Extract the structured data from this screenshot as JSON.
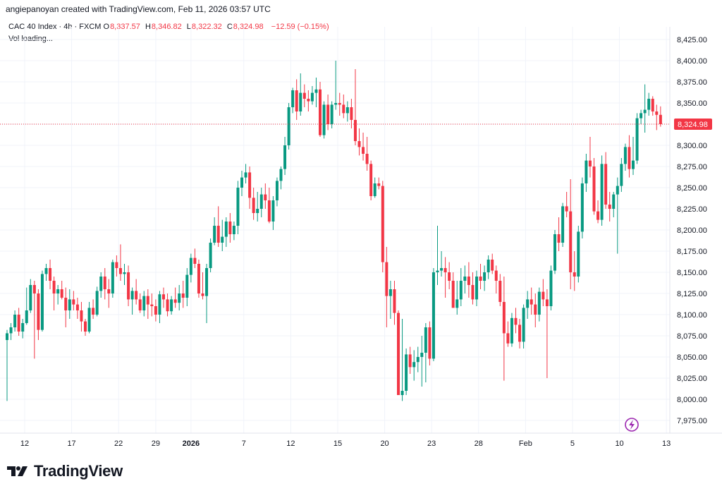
{
  "header": {
    "credit": "angiepanoyan created with TradingView.com, Feb 11, 2026 03:57 UTC"
  },
  "legend": {
    "symbol": "CAC 40 Index · 4h · FXCM",
    "o_label": "O",
    "o": "8,337.57",
    "h_label": "H",
    "h": "8,346.82",
    "l_label": "L",
    "l": "8,322.32",
    "c_label": "C",
    "c": "8,324.98",
    "change": "−12.59 (−0.15%)",
    "vol": "Vol loading..."
  },
  "footer": {
    "brand": "TradingView"
  },
  "colors": {
    "up": "#089981",
    "down": "#f23645",
    "grid": "#f0f3fa",
    "text": "#131722",
    "last_line": "#f23645"
  },
  "chart_data": {
    "type": "candlestick",
    "title": "CAC 40 Index · 4h · FXCM",
    "ylim": [
      7960,
      8440
    ],
    "y_ticks": [
      7975,
      8000,
      8025,
      8050,
      8075,
      8100,
      8125,
      8150,
      8175,
      8200,
      8225,
      8250,
      8275,
      8300,
      8325,
      8350,
      8375,
      8400,
      8425
    ],
    "y_tick_labels": [
      "7,975.00",
      "8,000.00",
      "8,025.00",
      "8,050.00",
      "8,075.00",
      "8,100.00",
      "8,125.00",
      "8,150.00",
      "8,175.00",
      "8,200.00",
      "8,225.00",
      "8,250.00",
      "8,275.00",
      "8,300.00",
      "8,325.00",
      "8,350.00",
      "8,375.00",
      "8,400.00",
      "8,425.00"
    ],
    "x_ticks": [
      {
        "label": "12",
        "bar": 4.5,
        "bold": false
      },
      {
        "label": "17",
        "bar": 16.5,
        "bold": false
      },
      {
        "label": "22",
        "bar": 28.5,
        "bold": false
      },
      {
        "label": "29",
        "bar": 38,
        "bold": false
      },
      {
        "label": "2026",
        "bar": 47,
        "bold": true
      },
      {
        "label": "7",
        "bar": 60.5,
        "bold": false
      },
      {
        "label": "12",
        "bar": 72.5,
        "bold": false
      },
      {
        "label": "15",
        "bar": 84.5,
        "bold": false
      },
      {
        "label": "20",
        "bar": 96.5,
        "bold": false
      },
      {
        "label": "23",
        "bar": 108.5,
        "bold": false
      },
      {
        "label": "28",
        "bar": 120.5,
        "bold": false
      },
      {
        "label": "Feb",
        "bar": 132.5,
        "bold": false
      },
      {
        "label": "5",
        "bar": 144.5,
        "bold": false
      },
      {
        "label": "10",
        "bar": 156.5,
        "bold": false
      },
      {
        "label": "13",
        "bar": 168.5,
        "bold": false
      }
    ],
    "last_price": 8324.98,
    "last_price_label": "8,324.98",
    "ohlc": [
      [
        8070,
        8082,
        7998,
        8078
      ],
      [
        8078,
        8090,
        8070,
        8085
      ],
      [
        8085,
        8105,
        8080,
        8100
      ],
      [
        8100,
        8108,
        8075,
        8080
      ],
      [
        8080,
        8095,
        8072,
        8090
      ],
      [
        8090,
        8132,
        8088,
        8105
      ],
      [
        8105,
        8142,
        8102,
        8135
      ],
      [
        8135,
        8140,
        8048,
        8125
      ],
      [
        8125,
        8130,
        8070,
        8082
      ],
      [
        8082,
        8152,
        8080,
        8148
      ],
      [
        8148,
        8160,
        8140,
        8155
      ],
      [
        8155,
        8165,
        8130,
        8140
      ],
      [
        8140,
        8145,
        8105,
        8125
      ],
      [
        8125,
        8135,
        8112,
        8130
      ],
      [
        8130,
        8140,
        8118,
        8120
      ],
      [
        8120,
        8132,
        8085,
        8105
      ],
      [
        8105,
        8130,
        8095,
        8118
      ],
      [
        8118,
        8128,
        8105,
        8112
      ],
      [
        8112,
        8120,
        8095,
        8105
      ],
      [
        8105,
        8115,
        8080,
        8092
      ],
      [
        8092,
        8095,
        8075,
        8080
      ],
      [
        8080,
        8115,
        8078,
        8108
      ],
      [
        8108,
        8118,
        8095,
        8100
      ],
      [
        8100,
        8133,
        8098,
        8128
      ],
      [
        8128,
        8150,
        8120,
        8145
      ],
      [
        8145,
        8155,
        8118,
        8130
      ],
      [
        8130,
        8142,
        8108,
        8125
      ],
      [
        8125,
        8165,
        8120,
        8162
      ],
      [
        8162,
        8170,
        8145,
        8155
      ],
      [
        8155,
        8183,
        8140,
        8148
      ],
      [
        8148,
        8160,
        8135,
        8150
      ],
      [
        8150,
        8158,
        8110,
        8118
      ],
      [
        8118,
        8132,
        8100,
        8128
      ],
      [
        8128,
        8142,
        8112,
        8118
      ],
      [
        8118,
        8125,
        8102,
        8105
      ],
      [
        8105,
        8128,
        8098,
        8122
      ],
      [
        8122,
        8130,
        8095,
        8112
      ],
      [
        8112,
        8125,
        8098,
        8110
      ],
      [
        8110,
        8118,
        8092,
        8100
      ],
      [
        8100,
        8128,
        8090,
        8124
      ],
      [
        8124,
        8132,
        8108,
        8118
      ],
      [
        8118,
        8125,
        8098,
        8104
      ],
      [
        8104,
        8122,
        8100,
        8118
      ],
      [
        8118,
        8132,
        8108,
        8114
      ],
      [
        8114,
        8135,
        8105,
        8125
      ],
      [
        8125,
        8140,
        8108,
        8120
      ],
      [
        8120,
        8155,
        8110,
        8147
      ],
      [
        8147,
        8172,
        8138,
        8167
      ],
      [
        8167,
        8178,
        8155,
        8160
      ],
      [
        8160,
        8165,
        8120,
        8125
      ],
      [
        8125,
        8150,
        8118,
        8122
      ],
      [
        8122,
        8160,
        8090,
        8155
      ],
      [
        8155,
        8190,
        8150,
        8185
      ],
      [
        8185,
        8215,
        8182,
        8205
      ],
      [
        8205,
        8228,
        8180,
        8185
      ],
      [
        8185,
        8212,
        8175,
        8192
      ],
      [
        8192,
        8215,
        8180,
        8210
      ],
      [
        8210,
        8220,
        8185,
        8195
      ],
      [
        8195,
        8210,
        8188,
        8205
      ],
      [
        8205,
        8258,
        8195,
        8250
      ],
      [
        8250,
        8270,
        8240,
        8262
      ],
      [
        8262,
        8278,
        8255,
        8268
      ],
      [
        8268,
        8275,
        8225,
        8238
      ],
      [
        8238,
        8250,
        8212,
        8220
      ],
      [
        8220,
        8245,
        8210,
        8225
      ],
      [
        8225,
        8250,
        8215,
        8242
      ],
      [
        8242,
        8255,
        8225,
        8235
      ],
      [
        8235,
        8250,
        8208,
        8210
      ],
      [
        8210,
        8240,
        8200,
        8235
      ],
      [
        8235,
        8262,
        8228,
        8258
      ],
      [
        8258,
        8275,
        8248,
        8272
      ],
      [
        8272,
        8310,
        8265,
        8300
      ],
      [
        8300,
        8350,
        8295,
        8345
      ],
      [
        8345,
        8368,
        8338,
        8365
      ],
      [
        8365,
        8378,
        8330,
        8340
      ],
      [
        8340,
        8385,
        8335,
        8362
      ],
      [
        8362,
        8372,
        8345,
        8355
      ],
      [
        8355,
        8365,
        8340,
        8352
      ],
      [
        8352,
        8370,
        8348,
        8362
      ],
      [
        8362,
        8380,
        8345,
        8366
      ],
      [
        8366,
        8375,
        8310,
        8312
      ],
      [
        8312,
        8352,
        8308,
        8348
      ],
      [
        8348,
        8360,
        8318,
        8325
      ],
      [
        8325,
        8352,
        8320,
        8348
      ],
      [
        8348,
        8400,
        8342,
        8350
      ],
      [
        8350,
        8362,
        8335,
        8348
      ],
      [
        8348,
        8360,
        8332,
        8338
      ],
      [
        8338,
        8352,
        8328,
        8345
      ],
      [
        8345,
        8355,
        8320,
        8330
      ],
      [
        8330,
        8390,
        8300,
        8305
      ],
      [
        8305,
        8320,
        8288,
        8298
      ],
      [
        8298,
        8315,
        8282,
        8290
      ],
      [
        8290,
        8310,
        8270,
        8278
      ],
      [
        8278,
        8282,
        8235,
        8240
      ],
      [
        8240,
        8262,
        8238,
        8255
      ],
      [
        8255,
        8262,
        8248,
        8252
      ],
      [
        8252,
        8258,
        8150,
        8162
      ],
      [
        8162,
        8180,
        8085,
        8122
      ],
      [
        8122,
        8140,
        8095,
        8130
      ],
      [
        8130,
        8140,
        8088,
        8102
      ],
      [
        8102,
        8105,
        8008,
        8005
      ],
      [
        8005,
        8095,
        7998,
        8010
      ],
      [
        8010,
        8060,
        8005,
        8053
      ],
      [
        8053,
        8062,
        8030,
        8038
      ],
      [
        8038,
        8058,
        8022,
        8044
      ],
      [
        8044,
        8062,
        8032,
        8050
      ],
      [
        8050,
        8075,
        8015,
        8055
      ],
      [
        8055,
        8090,
        8020,
        8085
      ],
      [
        8085,
        8092,
        8040,
        8048
      ],
      [
        8048,
        8155,
        8045,
        8150
      ],
      [
        8150,
        8205,
        8135,
        8152
      ],
      [
        8152,
        8175,
        8145,
        8155
      ],
      [
        8155,
        8168,
        8120,
        8150
      ],
      [
        8150,
        8162,
        8130,
        8140
      ],
      [
        8140,
        8150,
        8110,
        8108
      ],
      [
        8108,
        8140,
        8100,
        8118
      ],
      [
        8118,
        8155,
        8110,
        8140
      ],
      [
        8140,
        8158,
        8125,
        8145
      ],
      [
        8145,
        8162,
        8120,
        8135
      ],
      [
        8135,
        8150,
        8112,
        8118
      ],
      [
        8118,
        8152,
        8110,
        8145
      ],
      [
        8145,
        8160,
        8130,
        8140
      ],
      [
        8140,
        8158,
        8128,
        8150
      ],
      [
        8150,
        8170,
        8142,
        8165
      ],
      [
        8165,
        8172,
        8148,
        8152
      ],
      [
        8152,
        8158,
        8125,
        8140
      ],
      [
        8140,
        8148,
        8110,
        8115
      ],
      [
        8115,
        8145,
        8022,
        8078
      ],
      [
        8078,
        8092,
        8062,
        8066
      ],
      [
        8066,
        8102,
        8062,
        8096
      ],
      [
        8096,
        8108,
        8078,
        8088
      ],
      [
        8088,
        8095,
        8060,
        8068
      ],
      [
        8068,
        8112,
        8060,
        8108
      ],
      [
        8108,
        8128,
        8095,
        8118
      ],
      [
        8118,
        8132,
        8100,
        8112
      ],
      [
        8112,
        8125,
        8085,
        8100
      ],
      [
        8100,
        8132,
        8092,
        8127
      ],
      [
        8127,
        8142,
        8110,
        8118
      ],
      [
        8118,
        8130,
        8025,
        8110
      ],
      [
        8110,
        8158,
        8105,
        8152
      ],
      [
        8152,
        8200,
        8148,
        8195
      ],
      [
        8195,
        8215,
        8175,
        8185
      ],
      [
        8185,
        8232,
        8180,
        8228
      ],
      [
        8228,
        8245,
        8215,
        8222
      ],
      [
        8222,
        8260,
        8130,
        8150
      ],
      [
        8150,
        8175,
        8128,
        8145
      ],
      [
        8145,
        8205,
        8138,
        8198
      ],
      [
        8198,
        8262,
        8190,
        8255
      ],
      [
        8255,
        8290,
        8245,
        8282
      ],
      [
        8282,
        8310,
        8262,
        8275
      ],
      [
        8275,
        8285,
        8218,
        8222
      ],
      [
        8222,
        8235,
        8208,
        8212
      ],
      [
        8212,
        8288,
        8205,
        8278
      ],
      [
        8278,
        8292,
        8225,
        8230
      ],
      [
        8230,
        8245,
        8210,
        8225
      ],
      [
        8225,
        8245,
        8215,
        8242
      ],
      [
        8242,
        8262,
        8172,
        8252
      ],
      [
        8252,
        8285,
        8245,
        8278
      ],
      [
        8278,
        8302,
        8270,
        8298
      ],
      [
        8298,
        8312,
        8262,
        8272
      ],
      [
        8272,
        8310,
        8265,
        8282
      ],
      [
        8282,
        8338,
        8278,
        8332
      ],
      [
        8332,
        8342,
        8325,
        8338
      ],
      [
        8338,
        8372,
        8315,
        8342
      ],
      [
        8342,
        8362,
        8335,
        8355
      ],
      [
        8355,
        8358,
        8335,
        8340
      ],
      [
        8340,
        8348,
        8318,
        8336
      ],
      [
        8336,
        8346,
        8322,
        8325
      ]
    ]
  }
}
